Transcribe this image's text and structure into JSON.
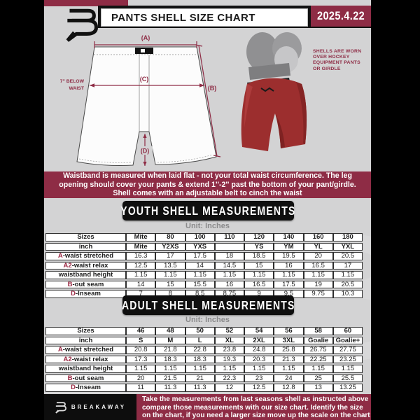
{
  "header": {
    "title": "PANTS SHELL SIZE CHART",
    "date": "2025.4.22",
    "brand_logo": "breakaway-b-logo"
  },
  "diagram": {
    "label_a": "(A)",
    "label_b": "(B)",
    "label_c": "(C)",
    "label_d": "(D)",
    "below_waist_line1": "7'' BELOW",
    "below_waist_line2": "WAIST",
    "photo_caption_lines": [
      "SHELLS ARE WORN",
      "OVER HOCKEY",
      "EQUIPMENT PANTS",
      "OR GIRDLE"
    ]
  },
  "notice": {
    "lines": [
      "Waistband is measured when laid flat - not your total waist circumference. The leg",
      "opening should cover your pants & extend 1''-2'' past the bottom of your pant/girdle.",
      "Shell comes with an adjustable belt to cinch the waist"
    ]
  },
  "youth": {
    "title": "YOUTH SHELL MEASUREMENTS",
    "unit": "Unit: Inches",
    "table": [
      {
        "accent": "",
        "label": "Sizes",
        "bold": true,
        "values": [
          "Mite",
          "80",
          "100",
          "110",
          "120",
          "140",
          "160",
          "180"
        ]
      },
      {
        "accent": "",
        "label": "inch",
        "bold": true,
        "values": [
          "Mite",
          "Y2XS",
          "YXS",
          "",
          "YS",
          "YM",
          "YL",
          "YXL"
        ]
      },
      {
        "accent": "A",
        "label": "-waist stretched",
        "bold": false,
        "values": [
          "16.3",
          "17",
          "17.5",
          "18",
          "18.5",
          "19.5",
          "20",
          "20.5"
        ]
      },
      {
        "accent": "A2",
        "label": "-waist relax",
        "bold": false,
        "values": [
          "12.5",
          "13.5",
          "14",
          "14.5",
          "15",
          "16",
          "16.5",
          "17"
        ]
      },
      {
        "accent": "",
        "label": "waistband height",
        "bold": false,
        "values": [
          "1.15",
          "1.15",
          "1.15",
          "1.15",
          "1.15",
          "1.15",
          "1.15",
          "1.15"
        ]
      },
      {
        "accent": "B",
        "label": "-out seam",
        "bold": false,
        "values": [
          "14",
          "15",
          "15.5",
          "16",
          "16.5",
          "17.5",
          "19",
          "20.5"
        ]
      },
      {
        "accent": "D",
        "label": "-Inseam",
        "bold": false,
        "values": [
          "7",
          "8",
          "8.5",
          "8.75",
          "9",
          "9.5",
          "9.75",
          "10.3"
        ]
      }
    ]
  },
  "adult": {
    "title": "ADULT SHELL MEASUREMENTS",
    "unit": "Unit: Inches",
    "table": [
      {
        "accent": "",
        "label": "Sizes",
        "bold": true,
        "values": [
          "46",
          "48",
          "50",
          "52",
          "54",
          "56",
          "58",
          "60"
        ]
      },
      {
        "accent": "",
        "label": "inch",
        "bold": true,
        "values": [
          "S",
          "M",
          "L",
          "XL",
          "2XL",
          "3XL",
          "Goalie",
          "Goalie+"
        ]
      },
      {
        "accent": "A",
        "label": "-waist stretched",
        "bold": false,
        "values": [
          "20.8",
          "21.8",
          "22.8",
          "23.8",
          "24.8",
          "25.8",
          "26.75",
          "27.75"
        ]
      },
      {
        "accent": "A2",
        "label": "-waist relax",
        "bold": false,
        "values": [
          "17.3",
          "18.3",
          "18.3",
          "19.3",
          "20.3",
          "21.3",
          "22.25",
          "23.25"
        ]
      },
      {
        "accent": "",
        "label": "waistband height",
        "bold": false,
        "values": [
          "1.15",
          "1.15",
          "1.15",
          "1.15",
          "1.15",
          "1.15",
          "1.15",
          "1.15"
        ]
      },
      {
        "accent": "B",
        "label": "-out seam",
        "bold": false,
        "values": [
          "20",
          "21.5",
          "21",
          "22.3",
          "23",
          "24",
          "25",
          "25.5"
        ]
      },
      {
        "accent": "D",
        "label": "-Inseam",
        "bold": false,
        "values": [
          "11",
          "11.3",
          "11.3",
          "12",
          "12.5",
          "12.8",
          "13",
          "13.25"
        ]
      }
    ]
  },
  "footer": {
    "brand": "BREAKAWAY",
    "lines": [
      "Take the measurements from last seasons shell as instructed above",
      "compare those measurements  with our size chart. Identify the size",
      "on the chart, if you need a larger size move up the scale on the chart"
    ]
  },
  "colors": {
    "maroon": "#8e2c45",
    "accent_letter": "#9b2742",
    "pants_red": "#9c2e2e",
    "girdle_gray": "#909092",
    "document_bg": "#d3d3d4",
    "banner_black": "#0f0f0f"
  }
}
